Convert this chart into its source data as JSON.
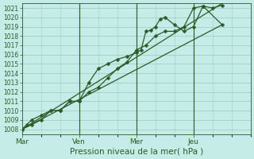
{
  "xlabel": "Pression niveau de la mer( hPa )",
  "background_color": "#c5ece6",
  "grid_color": "#9dcfc7",
  "line_color": "#2d5a27",
  "ylim": [
    1007.5,
    1021.5
  ],
  "yticks": [
    1008,
    1009,
    1010,
    1011,
    1012,
    1013,
    1014,
    1015,
    1016,
    1017,
    1018,
    1019,
    1020,
    1021
  ],
  "xtick_labels": [
    "Mar",
    "Ven",
    "Mer",
    "Jeu"
  ],
  "xtick_positions": [
    0,
    24,
    48,
    72
  ],
  "xvlines": [
    24,
    48,
    72
  ],
  "x_max": 96,
  "x_min": 0,
  "series1_x": [
    0,
    2,
    4,
    8,
    12,
    16,
    20,
    24,
    28,
    32,
    36,
    40,
    44,
    48,
    50,
    52,
    54,
    56,
    58,
    60,
    64,
    68,
    72,
    76,
    80,
    84
  ],
  "series1_y": [
    1008,
    1008.5,
    1009,
    1009.5,
    1010,
    1010,
    1011,
    1011,
    1013,
    1014.5,
    1015,
    1015.5,
    1015.8,
    1016.2,
    1016.5,
    1018.5,
    1018.6,
    1019.0,
    1019.8,
    1020,
    1019.2,
    1018.5,
    1019,
    1021.2,
    1021,
    1021.3
  ],
  "series2_x": [
    0,
    4,
    8,
    12,
    16,
    20,
    24,
    28,
    32,
    36,
    40,
    44,
    48,
    52,
    56,
    60,
    64,
    68,
    72,
    76,
    84
  ],
  "series2_y": [
    1008,
    1008.5,
    1009,
    1010,
    1010,
    1011,
    1011,
    1012,
    1012.5,
    1013.5,
    1014.5,
    1015.2,
    1016.5,
    1017.0,
    1018.0,
    1018.5,
    1018.5,
    1019,
    1021,
    1021.2,
    1019.2
  ],
  "series3_x": [
    0,
    84
  ],
  "series3_y": [
    1008,
    1019.2
  ],
  "series4_x": [
    0,
    84
  ],
  "series4_y": [
    1008,
    1021.5
  ]
}
